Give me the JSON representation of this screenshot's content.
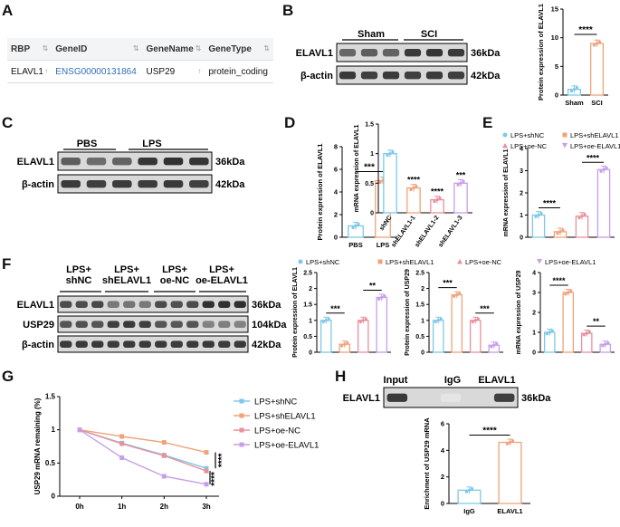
{
  "panels": {
    "A": "A",
    "B": "B",
    "C": "C",
    "D": "D",
    "E": "E",
    "F": "F",
    "G": "G",
    "H": "H"
  },
  "table": {
    "headers": [
      "RBP",
      "GeneID",
      "GeneName",
      "GeneType"
    ],
    "row": [
      "ELAVL1",
      "ENSG00000131864",
      "USP29",
      "protein_coding"
    ]
  },
  "blots": {
    "B": {
      "groups": [
        "Sham",
        "SCI"
      ],
      "rows": [
        "ELAVL1",
        "β-actin"
      ],
      "sizes": [
        "36kDa",
        "42kDa"
      ]
    },
    "C": {
      "groups": [
        "PBS",
        "LPS"
      ],
      "rows": [
        "ELAVL1",
        "β-actin"
      ],
      "sizes": [
        "36kDa",
        "42kDa"
      ]
    },
    "F": {
      "groups": [
        "LPS+\nshNC",
        "LPS+\nshELAVL1",
        "LPS+\noe-NC",
        "LPS+\noe-ELAVL1"
      ],
      "rows": [
        "ELAVL1",
        "USP29",
        "β-actin"
      ],
      "sizes": [
        "36kDa",
        "104kDa",
        "42kDa"
      ]
    },
    "H": {
      "groups": [
        "Input",
        "IgG",
        "ELAVL1"
      ],
      "rows": [
        "ELAVL1"
      ],
      "sizes": [
        "36kDa"
      ]
    }
  },
  "colors": {
    "blue": "#7ec8e8",
    "orange": "#f0a27a",
    "pink": "#e8909c",
    "purple": "#c79ee8"
  },
  "chart_data": [
    {
      "id": "B",
      "type": "bar",
      "categories": [
        "Sham",
        "SCI"
      ],
      "values": [
        1.0,
        9.0
      ],
      "ylabel": "Protein expression of ELAVL1",
      "ylim": [
        0,
        15
      ],
      "yticks": [
        0,
        5,
        10,
        15
      ],
      "sig": [
        "****"
      ]
    },
    {
      "id": "C",
      "type": "bar",
      "categories": [
        "PBS",
        "LPS"
      ],
      "values": [
        1.0,
        5.0
      ],
      "ylabel": "Protein expression of ELAVL1",
      "ylim": [
        0,
        8
      ],
      "yticks": [
        0,
        2,
        4,
        6,
        8
      ],
      "sig": [
        "***"
      ]
    },
    {
      "id": "D",
      "type": "bar",
      "categories": [
        "shNC",
        "shELAVL1-1",
        "shELAVL1-2",
        "shELAVL1-3"
      ],
      "values": [
        1.0,
        0.42,
        0.22,
        0.5
      ],
      "ylabel": "mRNA expression of ELAVL1",
      "ylim": [
        0,
        1.5
      ],
      "yticks": [
        0,
        0.5,
        1.0,
        1.5
      ],
      "sig": [
        "****",
        "****",
        "***"
      ]
    },
    {
      "id": "E",
      "type": "bar",
      "categories": [
        "LPS+shNC",
        "LPS+shELAVL1",
        "LPS+oe-NC",
        "LPS+oe-ELAVL1"
      ],
      "values": [
        1.0,
        0.25,
        0.95,
        3.05
      ],
      "ylabel": "mRNA expression of ELAVL1",
      "ylim": [
        0,
        4
      ],
      "yticks": [
        0,
        1,
        2,
        3,
        4
      ],
      "sig": [
        "****",
        "****"
      ]
    },
    {
      "id": "F1",
      "type": "bar",
      "categories": [
        "LPS+shNC",
        "LPS+shELAVL1",
        "LPS+oe-NC",
        "LPS+oe-ELAVL1"
      ],
      "values": [
        1.0,
        0.25,
        1.0,
        1.72
      ],
      "ylabel": "Protein expression of ELAVL1",
      "ylim": [
        0,
        2.5
      ],
      "yticks": [
        0,
        0.5,
        1.0,
        1.5,
        2.0,
        2.5
      ],
      "sig": [
        "***",
        "**"
      ]
    },
    {
      "id": "F2",
      "type": "bar",
      "categories": [
        "LPS+shNC",
        "LPS+shELAVL1",
        "LPS+oe-NC",
        "LPS+oe-ELAVL1"
      ],
      "values": [
        1.0,
        1.8,
        1.0,
        0.22
      ],
      "ylabel": "Protein expression of USP29",
      "ylim": [
        0,
        2.5
      ],
      "yticks": [
        0,
        0.5,
        1.0,
        1.5,
        2.0,
        2.5
      ],
      "sig": [
        "***",
        "***"
      ]
    },
    {
      "id": "F3",
      "type": "bar",
      "categories": [
        "LPS+shNC",
        "LPS+shELAVL1",
        "LPS+oe-NC",
        "LPS+oe-ELAVL1"
      ],
      "values": [
        1.0,
        3.0,
        0.95,
        0.4
      ],
      "ylabel": "mRNA expression of USP29",
      "ylim": [
        0,
        4
      ],
      "yticks": [
        0,
        1,
        2,
        3,
        4
      ],
      "sig": [
        "****",
        "**"
      ]
    },
    {
      "id": "G",
      "type": "line",
      "x": [
        "0h",
        "1h",
        "2h",
        "3h"
      ],
      "series": [
        {
          "name": "LPS+shNC",
          "values": [
            1.0,
            0.8,
            0.62,
            0.42
          ]
        },
        {
          "name": "LPS+shELAVL1",
          "values": [
            1.0,
            0.9,
            0.81,
            0.66
          ]
        },
        {
          "name": "LPS+oe-NC",
          "values": [
            1.0,
            0.79,
            0.61,
            0.38
          ]
        },
        {
          "name": "LPS+oe-ELAVL1",
          "values": [
            1.0,
            0.58,
            0.3,
            0.18
          ]
        }
      ],
      "ylabel": "USP29 mRNA remaining (%)",
      "ylim": [
        0,
        1.5
      ],
      "yticks": [
        0,
        0.5,
        1.0,
        1.5
      ],
      "sig": [
        "****",
        "****"
      ]
    },
    {
      "id": "H",
      "type": "bar",
      "categories": [
        "IgG",
        "ELAVL1"
      ],
      "values": [
        1.0,
        4.6
      ],
      "ylabel": "Enrichment of USP29 mRNA",
      "ylim": [
        0,
        6
      ],
      "yticks": [
        0,
        2,
        4,
        6
      ],
      "sig": [
        "****"
      ]
    }
  ],
  "legendE": [
    "LPS+shNC",
    "LPS+shELAVL1",
    "LPS+oe-NC",
    "LPS+oe-ELAVL1"
  ]
}
